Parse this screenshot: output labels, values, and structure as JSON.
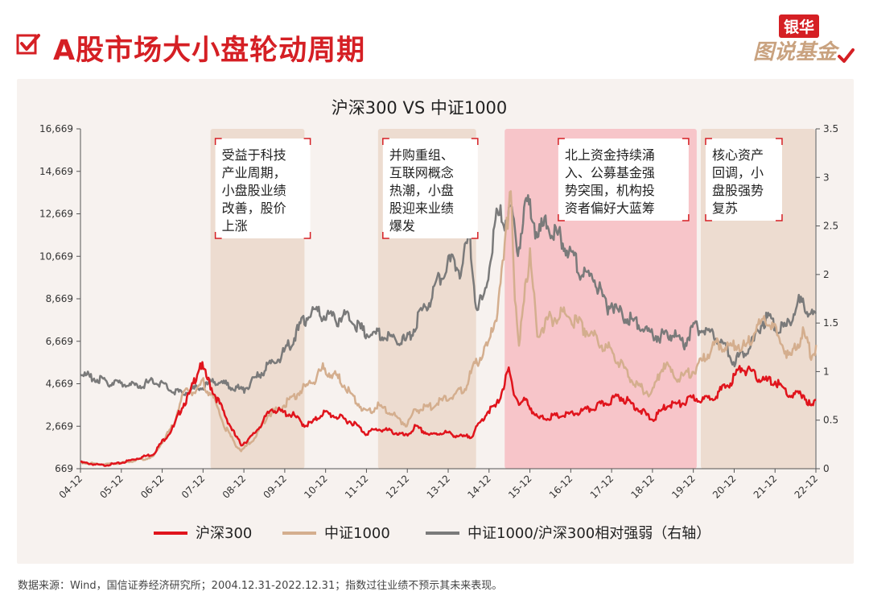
{
  "page": {
    "title": "A股市场大小盘轮动周期",
    "brand_top": "银华",
    "brand_bottom": "图说基金",
    "footnote": "数据来源：Wind，国信证券经济研究所；2004.12.31-2022.12.31；指数过往业绩不预示其未来表现。"
  },
  "colors": {
    "accent": "#d51f24",
    "hs300": "#e0141c",
    "zz1000": "#d4ae8e",
    "ratio": "#7a7a7a",
    "shade_beige": "#eddcd0",
    "shade_pink": "#f7c5c9",
    "panel_bg": "#f7f2ef"
  },
  "chart_data": {
    "type": "line",
    "title": "沪深300 VS 中证1000",
    "y_left": {
      "min": 669,
      "max": 16669,
      "ticks": [
        "669",
        "2,669",
        "4,669",
        "6,669",
        "8,669",
        "10,669",
        "12,669",
        "14,669",
        "16,669"
      ]
    },
    "y_right": {
      "min": 0,
      "max": 3.5,
      "ticks": [
        "0",
        "0.5",
        "1",
        "1.5",
        "2",
        "2.5",
        "3",
        "3.5"
      ]
    },
    "x_ticks": [
      "04-12",
      "05-12",
      "06-12",
      "07-12",
      "08-12",
      "09-12",
      "10-12",
      "11-12",
      "12-12",
      "13-12",
      "14-12",
      "15-12",
      "16-12",
      "17-12",
      "18-12",
      "19-12",
      "20-12",
      "21-12",
      "22-12"
    ],
    "x_range": [
      2004.917,
      2022.917
    ],
    "grid": false,
    "legend_position": "bottom",
    "shaded_periods": [
      {
        "start": 2008.1,
        "end": 2010.4,
        "color": "beige",
        "label_lines": [
          "受益于科技",
          "产业周期，",
          "小盘股业绩",
          "改善，股价",
          "上涨"
        ]
      },
      {
        "start": 2012.2,
        "end": 2014.6,
        "color": "beige",
        "label_lines": [
          "并购重组、",
          "互联网概念",
          "热潮，小盘",
          "股迎来业绩",
          "爆发"
        ]
      },
      {
        "start": 2015.3,
        "end": 2020.0,
        "color": "pink",
        "label_lines": [
          "北上资金持续涌",
          "入、公募基金强",
          "势突围，机构投",
          "资者偏好大蓝筹"
        ]
      },
      {
        "start": 2020.1,
        "end": 2022.9,
        "color": "beige",
        "label_lines": [
          "核心资产",
          "回调，小",
          "盘股强势",
          "复苏"
        ]
      }
    ],
    "series": [
      {
        "name": "沪深300",
        "axis": "left",
        "color": "#e0141c",
        "points": [
          [
            2004.92,
            1000
          ],
          [
            2005.3,
            880
          ],
          [
            2005.5,
            850
          ],
          [
            2005.9,
            960
          ],
          [
            2006.3,
            1180
          ],
          [
            2006.7,
            1400
          ],
          [
            2006.92,
            2000
          ],
          [
            2007.2,
            2700
          ],
          [
            2007.4,
            3700
          ],
          [
            2007.6,
            4300
          ],
          [
            2007.75,
            5200
          ],
          [
            2007.85,
            5800
          ],
          [
            2007.95,
            5300
          ],
          [
            2008.2,
            4300
          ],
          [
            2008.45,
            3300
          ],
          [
            2008.7,
            2300
          ],
          [
            2008.85,
            1850
          ],
          [
            2009.1,
            2200
          ],
          [
            2009.4,
            3000
          ],
          [
            2009.6,
            3600
          ],
          [
            2009.85,
            3400
          ],
          [
            2010.1,
            3300
          ],
          [
            2010.4,
            2800
          ],
          [
            2010.6,
            2900
          ],
          [
            2010.85,
            3400
          ],
          [
            2011.2,
            3200
          ],
          [
            2011.6,
            2900
          ],
          [
            2011.9,
            2400
          ],
          [
            2012.2,
            2600
          ],
          [
            2012.5,
            2500
          ],
          [
            2012.9,
            2250
          ],
          [
            2013.1,
            2700
          ],
          [
            2013.5,
            2300
          ],
          [
            2013.8,
            2450
          ],
          [
            2014.3,
            2200
          ],
          [
            2014.5,
            2300
          ],
          [
            2014.9,
            3500
          ],
          [
            2015.1,
            3700
          ],
          [
            2015.4,
            5400
          ],
          [
            2015.5,
            4600
          ],
          [
            2015.65,
            3800
          ],
          [
            2015.8,
            4000
          ],
          [
            2015.92,
            3700
          ],
          [
            2016.1,
            3100
          ],
          [
            2016.5,
            3200
          ],
          [
            2016.9,
            3300
          ],
          [
            2017.3,
            3500
          ],
          [
            2017.7,
            3800
          ],
          [
            2017.92,
            4000
          ],
          [
            2018.1,
            4200
          ],
          [
            2018.5,
            3700
          ],
          [
            2018.92,
            3050
          ],
          [
            2019.3,
            3800
          ],
          [
            2019.6,
            3800
          ],
          [
            2019.92,
            4100
          ],
          [
            2020.2,
            4000
          ],
          [
            2020.5,
            4300
          ],
          [
            2020.8,
            4800
          ],
          [
            2020.95,
            5200
          ],
          [
            2021.1,
            5600
          ],
          [
            2021.4,
            5200
          ],
          [
            2021.7,
            4900
          ],
          [
            2021.92,
            4900
          ],
          [
            2022.3,
            4200
          ],
          [
            2022.6,
            4300
          ],
          [
            2022.8,
            3650
          ],
          [
            2022.92,
            3900
          ]
        ]
      },
      {
        "name": "中证1000",
        "axis": "left",
        "color": "#d4ae8e",
        "points": [
          [
            2004.92,
            1000
          ],
          [
            2005.3,
            920
          ],
          [
            2005.5,
            900
          ],
          [
            2005.9,
            950
          ],
          [
            2006.3,
            1100
          ],
          [
            2006.7,
            1250
          ],
          [
            2006.92,
            2000
          ],
          [
            2007.2,
            2800
          ],
          [
            2007.4,
            4200
          ],
          [
            2007.6,
            4500
          ],
          [
            2007.75,
            4300
          ],
          [
            2007.9,
            4900
          ],
          [
            2008.2,
            4000
          ],
          [
            2008.45,
            2700
          ],
          [
            2008.7,
            1900
          ],
          [
            2008.85,
            1550
          ],
          [
            2009.2,
            2200
          ],
          [
            2009.5,
            3300
          ],
          [
            2009.8,
            3600
          ],
          [
            2010.1,
            4100
          ],
          [
            2010.4,
            4600
          ],
          [
            2010.6,
            4900
          ],
          [
            2010.85,
            5500
          ],
          [
            2011.2,
            5100
          ],
          [
            2011.4,
            4700
          ],
          [
            2011.6,
            4100
          ],
          [
            2011.9,
            3400
          ],
          [
            2012.2,
            3700
          ],
          [
            2012.5,
            3400
          ],
          [
            2012.9,
            2800
          ],
          [
            2013.1,
            3500
          ],
          [
            2013.5,
            3700
          ],
          [
            2013.9,
            4100
          ],
          [
            2014.3,
            4500
          ],
          [
            2014.6,
            5800
          ],
          [
            2014.9,
            6600
          ],
          [
            2015.1,
            8200
          ],
          [
            2015.3,
            11000
          ],
          [
            2015.45,
            14800
          ],
          [
            2015.55,
            8800
          ],
          [
            2015.65,
            6400
          ],
          [
            2015.8,
            9800
          ],
          [
            2015.92,
            10800
          ],
          [
            2016.1,
            7200
          ],
          [
            2016.4,
            7900
          ],
          [
            2016.7,
            8100
          ],
          [
            2016.92,
            8000
          ],
          [
            2017.3,
            7400
          ],
          [
            2017.6,
            6800
          ],
          [
            2017.92,
            6400
          ],
          [
            2018.3,
            5300
          ],
          [
            2018.6,
            4600
          ],
          [
            2018.9,
            4300
          ],
          [
            2019.2,
            5800
          ],
          [
            2019.5,
            5000
          ],
          [
            2019.92,
            5400
          ],
          [
            2020.2,
            6000
          ],
          [
            2020.5,
            6800
          ],
          [
            2020.8,
            6500
          ],
          [
            2020.95,
            6700
          ],
          [
            2021.2,
            6600
          ],
          [
            2021.5,
            7600
          ],
          [
            2021.7,
            7900
          ],
          [
            2021.92,
            7300
          ],
          [
            2022.3,
            6000
          ],
          [
            2022.6,
            7200
          ],
          [
            2022.8,
            6200
          ],
          [
            2022.92,
            6500
          ]
        ]
      },
      {
        "name": "中证1000/沪深300相对强弱（右轴）",
        "axis": "right",
        "color": "#7a7a7a",
        "points": [
          [
            2004.92,
            1.0
          ],
          [
            2005.3,
            0.95
          ],
          [
            2005.5,
            0.92
          ],
          [
            2005.9,
            0.9
          ],
          [
            2006.3,
            0.87
          ],
          [
            2006.7,
            0.92
          ],
          [
            2006.92,
            0.9
          ],
          [
            2007.2,
            0.82
          ],
          [
            2007.4,
            0.8
          ],
          [
            2007.6,
            0.83
          ],
          [
            2007.85,
            0.85
          ],
          [
            2008.2,
            0.93
          ],
          [
            2008.6,
            0.87
          ],
          [
            2008.9,
            0.83
          ],
          [
            2009.2,
            0.95
          ],
          [
            2009.5,
            1.08
          ],
          [
            2009.8,
            1.18
          ],
          [
            2010.1,
            1.35
          ],
          [
            2010.4,
            1.58
          ],
          [
            2010.6,
            1.65
          ],
          [
            2010.85,
            1.62
          ],
          [
            2011.2,
            1.58
          ],
          [
            2011.5,
            1.62
          ],
          [
            2011.7,
            1.5
          ],
          [
            2011.9,
            1.44
          ],
          [
            2012.2,
            1.42
          ],
          [
            2012.5,
            1.38
          ],
          [
            2012.9,
            1.35
          ],
          [
            2013.2,
            1.6
          ],
          [
            2013.5,
            1.8
          ],
          [
            2013.8,
            2.1
          ],
          [
            2013.92,
            2.2
          ],
          [
            2014.2,
            2.1
          ],
          [
            2014.45,
            2.45
          ],
          [
            2014.6,
            1.7
          ],
          [
            2014.8,
            1.8
          ],
          [
            2014.9,
            2.1
          ],
          [
            2015.1,
            2.7
          ],
          [
            2015.3,
            2.6
          ],
          [
            2015.45,
            2.75
          ],
          [
            2015.6,
            2.3
          ],
          [
            2015.8,
            2.7
          ],
          [
            2015.92,
            2.8
          ],
          [
            2016.1,
            2.45
          ],
          [
            2016.3,
            2.6
          ],
          [
            2016.5,
            2.5
          ],
          [
            2016.92,
            2.3
          ],
          [
            2017.2,
            2.05
          ],
          [
            2017.5,
            2.0
          ],
          [
            2017.8,
            1.7
          ],
          [
            2017.92,
            1.75
          ],
          [
            2018.2,
            1.6
          ],
          [
            2018.5,
            1.55
          ],
          [
            2018.8,
            1.45
          ],
          [
            2019.1,
            1.4
          ],
          [
            2019.4,
            1.42
          ],
          [
            2019.7,
            1.32
          ],
          [
            2019.92,
            1.5
          ],
          [
            2020.3,
            1.45
          ],
          [
            2020.6,
            1.35
          ],
          [
            2020.9,
            1.13
          ],
          [
            2021.1,
            1.2
          ],
          [
            2021.4,
            1.35
          ],
          [
            2021.6,
            1.55
          ],
          [
            2021.8,
            1.6
          ],
          [
            2021.92,
            1.5
          ],
          [
            2022.2,
            1.5
          ],
          [
            2022.5,
            1.75
          ],
          [
            2022.7,
            1.68
          ],
          [
            2022.92,
            1.6
          ]
        ]
      }
    ]
  }
}
